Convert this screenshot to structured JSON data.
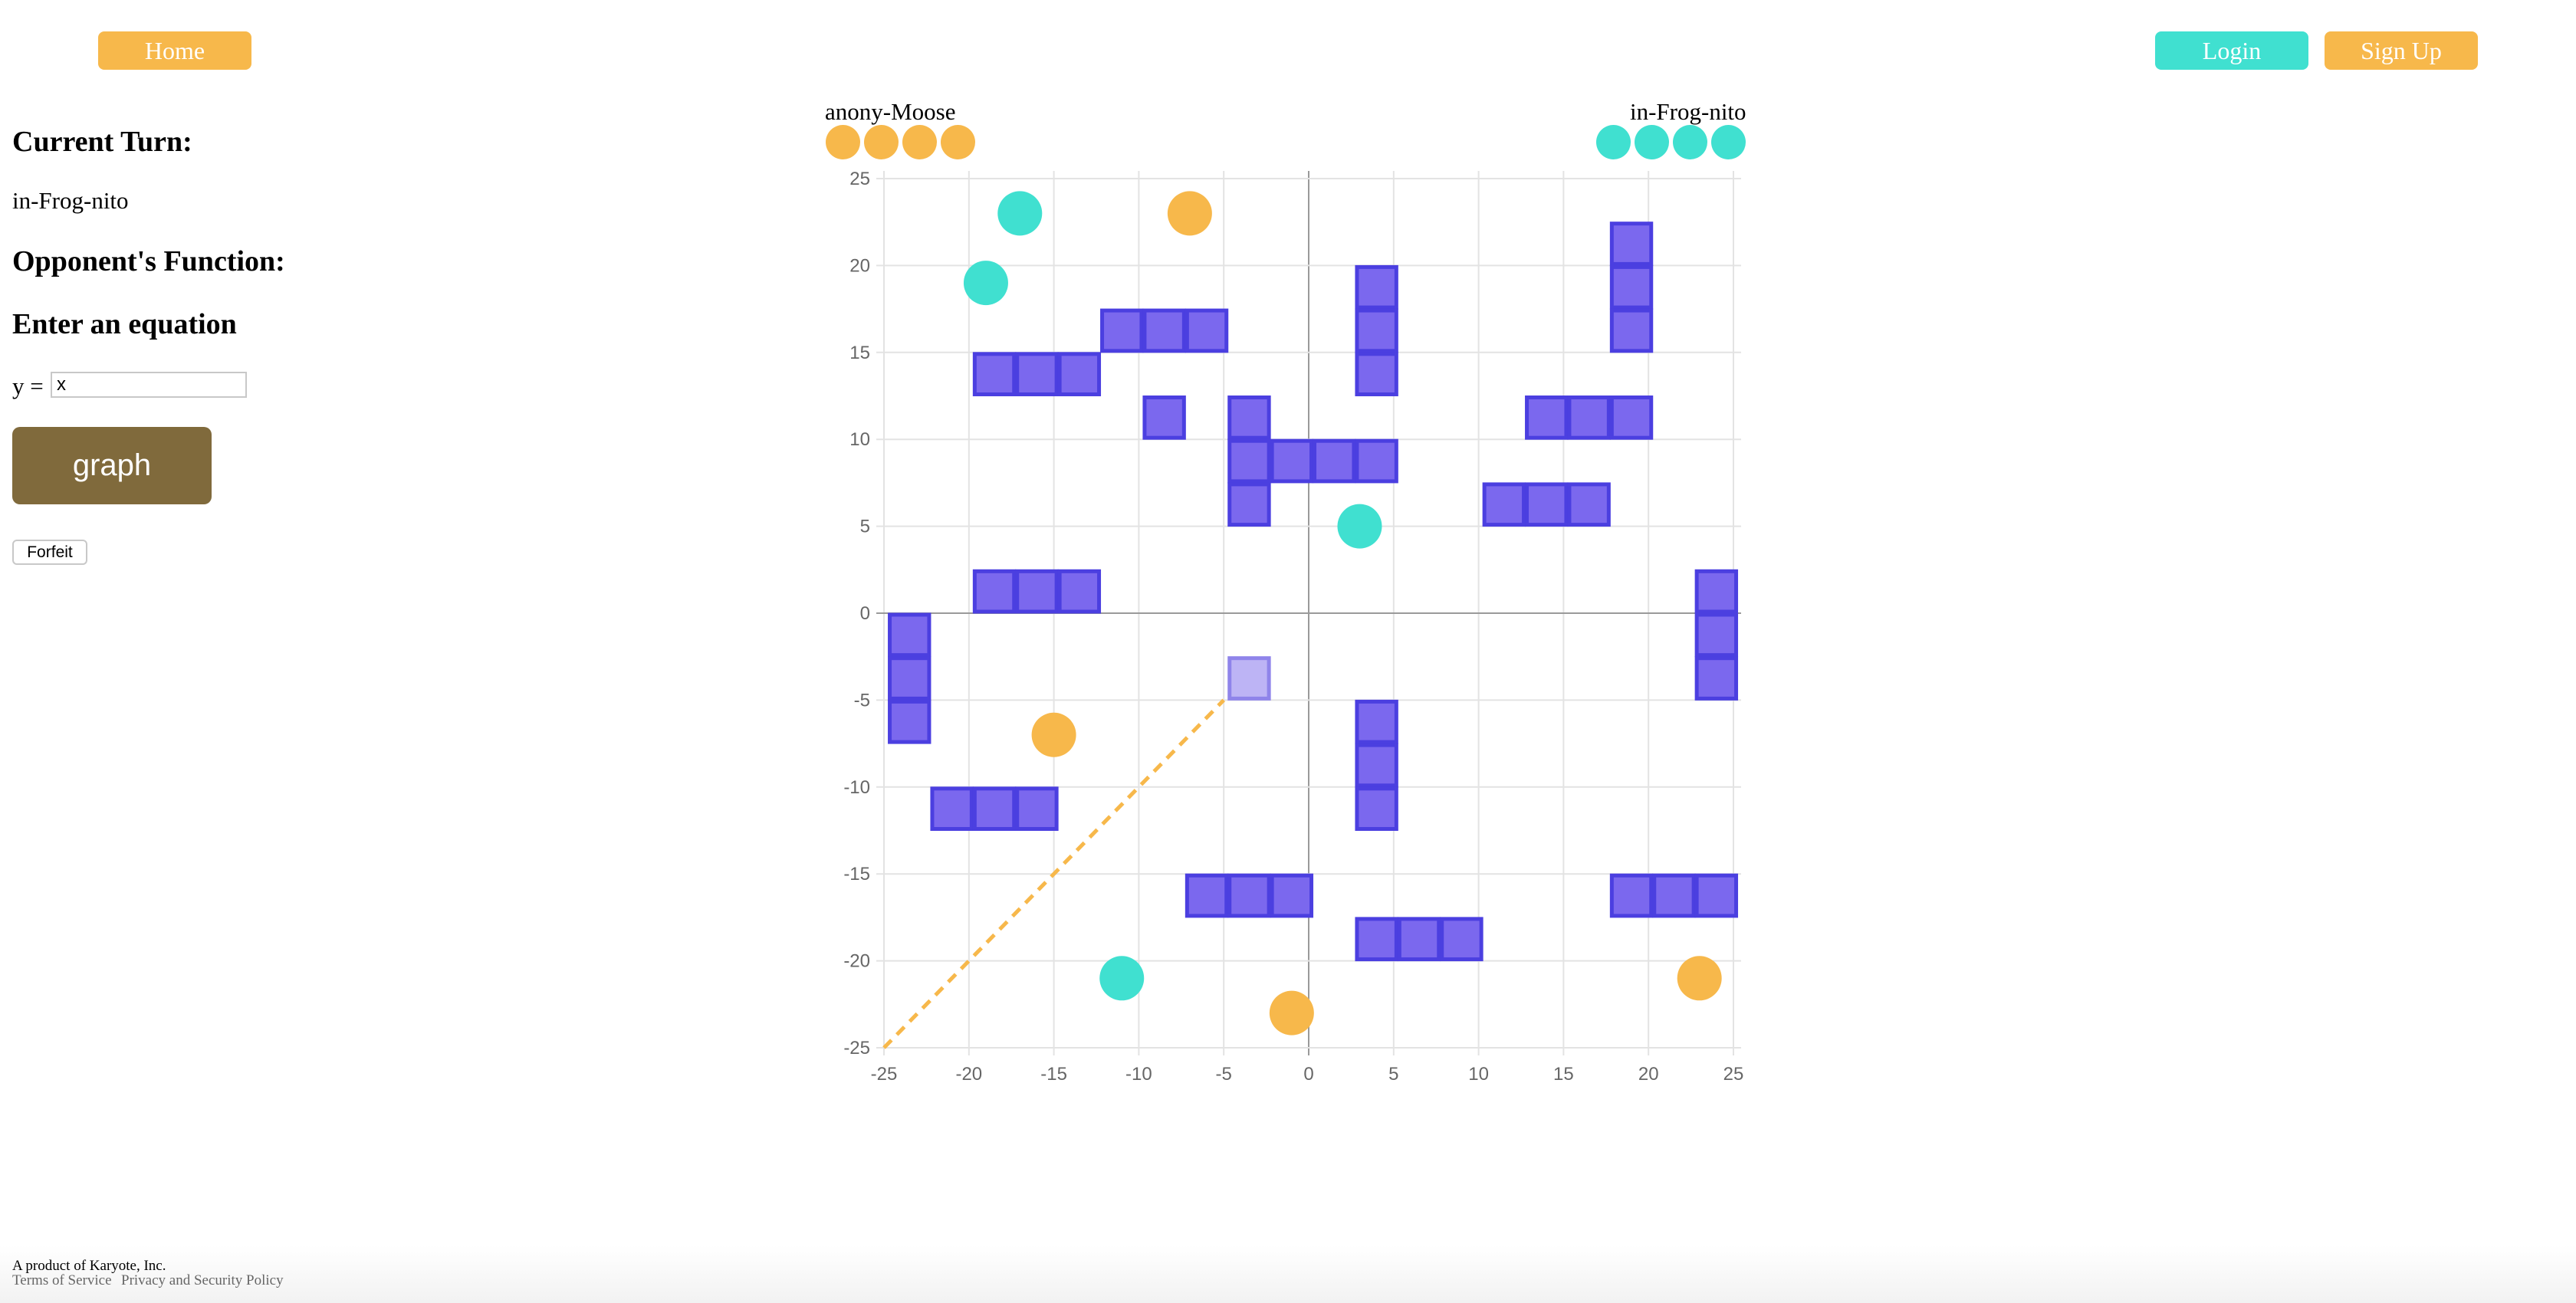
{
  "nav": {
    "home_label": "Home",
    "login_label": "Login",
    "signup_label": "Sign Up"
  },
  "sidebar": {
    "current_turn_label": "Current Turn:",
    "current_turn_value": "in-Frog-nito",
    "opponent_function_label": "Opponent's Function:",
    "enter_equation_label": "Enter an equation",
    "y_prefix": "y =",
    "equation_value": "x",
    "graph_label": "graph",
    "forfeit_label": "Forfeit"
  },
  "players": [
    {
      "name": "anony-Moose",
      "color": "#f7b84b",
      "tokens": 4
    },
    {
      "name": "in-Frog-nito",
      "color": "#40e0d0",
      "tokens": 4
    }
  ],
  "footer": {
    "company": "A product of Karyote, Inc.",
    "terms": "Terms of Service",
    "privacy": "Privacy and Security Policy"
  },
  "colors": {
    "orange": "#f7b84b",
    "teal": "#40e0d0",
    "obstacle_fill": "#7b68ee",
    "obstacle_stroke": "#4b3fe0",
    "graph_button": "#806a3c"
  },
  "chart_data": {
    "type": "scatter",
    "xlim": [
      -25,
      25
    ],
    "ylim": [
      -25,
      25
    ],
    "x_ticks": [
      -25,
      -20,
      -15,
      -10,
      -5,
      0,
      5,
      10,
      15,
      20,
      25
    ],
    "y_ticks": [
      25,
      20,
      15,
      10,
      5,
      0,
      -5,
      -10,
      -15,
      -20,
      -25
    ],
    "grid": true,
    "teal_players": [
      [
        -17,
        23
      ],
      [
        -19,
        19
      ],
      [
        3,
        5
      ],
      [
        -11,
        -21
      ]
    ],
    "orange_players": [
      [
        -7,
        23
      ],
      [
        -15,
        -7
      ],
      [
        -1,
        -23
      ],
      [
        23,
        -21
      ]
    ],
    "obstacle_cells": [
      [
        -11,
        16.25
      ],
      [
        -8.5,
        16.25
      ],
      [
        -6,
        16.25
      ],
      [
        -18.5,
        13.75
      ],
      [
        -16,
        13.75
      ],
      [
        -13.5,
        13.75
      ],
      [
        -8.5,
        11.25
      ],
      [
        -3.5,
        11.25
      ],
      [
        -3.5,
        8.75
      ],
      [
        -1,
        8.75
      ],
      [
        1.5,
        8.75
      ],
      [
        4,
        8.75
      ],
      [
        -3.5,
        6.25
      ],
      [
        4,
        18.75
      ],
      [
        4,
        16.25
      ],
      [
        4,
        13.75
      ],
      [
        19,
        21.25
      ],
      [
        19,
        18.75
      ],
      [
        19,
        16.25
      ],
      [
        14,
        11.25
      ],
      [
        16.5,
        11.25
      ],
      [
        19,
        11.25
      ],
      [
        11.5,
        6.25
      ],
      [
        14,
        6.25
      ],
      [
        16.5,
        6.25
      ],
      [
        -18.5,
        1.25
      ],
      [
        -16,
        1.25
      ],
      [
        -13.5,
        1.25
      ],
      [
        -23.5,
        -1.25
      ],
      [
        -23.5,
        -3.75
      ],
      [
        -23.5,
        -6.25
      ],
      [
        24,
        1.25
      ],
      [
        24,
        -1.25
      ],
      [
        24,
        -3.75
      ],
      [
        4,
        -6.25
      ],
      [
        4,
        -8.75
      ],
      [
        4,
        -11.25
      ],
      [
        -21,
        -11.25
      ],
      [
        -18.5,
        -11.25
      ],
      [
        -16,
        -11.25
      ],
      [
        -6,
        -16.25
      ],
      [
        -3.5,
        -16.25
      ],
      [
        -1,
        -16.25
      ],
      [
        19,
        -16.25
      ],
      [
        21.5,
        -16.25
      ],
      [
        24,
        -16.25
      ],
      [
        4,
        -18.75
      ],
      [
        6.5,
        -18.75
      ],
      [
        9,
        -18.75
      ]
    ],
    "highlight_cell": [
      -3.5,
      -3.75
    ],
    "function_line": {
      "from": [
        -25,
        -25
      ],
      "to": [
        -5,
        -5
      ]
    }
  }
}
